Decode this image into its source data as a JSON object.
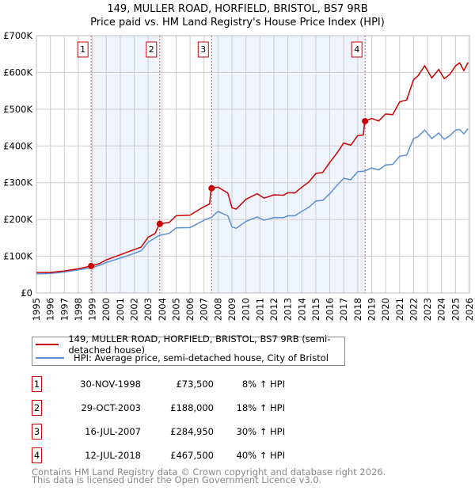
{
  "chart_data": {
    "type": "line",
    "title": "149, MULLER ROAD, HORFIELD, BRISTOL, BS7 9RB",
    "subtitle": "Price paid vs. HM Land Registry's House Price Index (HPI)",
    "xlim": [
      1995,
      2026
    ],
    "ylim": [
      0,
      700000
    ],
    "y_ticks": [
      0,
      100000,
      200000,
      300000,
      400000,
      500000,
      600000,
      700000
    ],
    "y_tick_labels": [
      "£0",
      "£100K",
      "£200K",
      "£300K",
      "£400K",
      "£500K",
      "£600K",
      "£700K"
    ],
    "x_ticks": [
      1995,
      1996,
      1997,
      1998,
      1999,
      2000,
      2001,
      2002,
      2003,
      2004,
      2005,
      2006,
      2007,
      2008,
      2009,
      2010,
      2011,
      2012,
      2013,
      2014,
      2015,
      2016,
      2017,
      2018,
      2019,
      2020,
      2021,
      2022,
      2023,
      2024,
      2025,
      2026
    ],
    "grid": true,
    "series": [
      {
        "name": "149, MULLER ROAD, HORFIELD, BRISTOL, BS7 9RB (semi-detached house)",
        "color": "#cc0000",
        "x": [
          1995,
          1996,
          1997,
          1998,
          1998.9,
          1999.5,
          2000,
          2001,
          2002,
          2002.5,
          2003,
          2003.5,
          2003.8,
          2004.5,
          2005,
          2006,
          2007,
          2007.4,
          2007.5,
          2008,
          2008.7,
          2009,
          2009.3,
          2010,
          2010.8,
          2011.3,
          2012,
          2012.7,
          2013,
          2013.5,
          2014,
          2014.5,
          2015,
          2015.5,
          2016,
          2016.5,
          2017,
          2017.5,
          2018,
          2018.4,
          2018.5,
          2019,
          2019.5,
          2020,
          2020.5,
          2021,
          2021.5,
          2022,
          2022.3,
          2022.8,
          2023.3,
          2023.8,
          2024.2,
          2024.6,
          2025,
          2025.3,
          2025.6,
          2025.9
        ],
        "y": [
          56,
          56,
          60,
          66,
          73.5,
          80,
          90,
          104,
          118,
          125,
          152,
          162,
          188,
          192,
          210,
          212,
          235,
          242,
          285,
          288,
          272,
          232,
          228,
          255,
          270,
          258,
          267,
          266,
          273,
          272,
          288,
          302,
          325,
          328,
          355,
          380,
          408,
          402,
          428,
          430,
          467.5,
          475,
          468,
          487,
          485,
          520,
          525,
          580,
          590,
          618,
          585,
          608,
          583,
          595,
          618,
          626,
          605,
          627
        ]
      },
      {
        "name": "HPI: Average price, semi-detached house, City of Bristol",
        "color": "#5b8fd4",
        "x": [
          1995,
          1996,
          1997,
          1998,
          1998.9,
          1999.5,
          2000,
          2001,
          2002,
          2002.5,
          2003,
          2003.5,
          2003.8,
          2004.5,
          2005,
          2006,
          2007,
          2007.4,
          2007.5,
          2008,
          2008.7,
          2009,
          2009.3,
          2010,
          2010.8,
          2011.3,
          2012,
          2012.7,
          2013,
          2013.5,
          2014,
          2014.5,
          2015,
          2015.5,
          2016,
          2016.5,
          2017,
          2017.5,
          2018,
          2018.4,
          2018.5,
          2019,
          2019.5,
          2020,
          2020.5,
          2021,
          2021.5,
          2022,
          2022.3,
          2022.8,
          2023.3,
          2023.8,
          2024.2,
          2024.6,
          2025,
          2025.3,
          2025.6,
          2025.9
        ],
        "y": [
          52,
          53,
          57,
          63,
          68,
          75,
          83,
          95,
          108,
          115,
          138,
          150,
          157,
          162,
          177,
          178,
          198,
          204,
          205,
          222,
          210,
          180,
          176,
          195,
          207,
          198,
          205,
          205,
          210,
          210,
          222,
          233,
          250,
          252,
          270,
          292,
          312,
          308,
          330,
          331,
          332,
          340,
          335,
          348,
          350,
          372,
          375,
          420,
          425,
          443,
          420,
          435,
          418,
          428,
          443,
          445,
          433,
          447
        ]
      }
    ],
    "y_units": "thousands GBP",
    "sales": [
      {
        "n": "1",
        "x": 1998.92,
        "y": 73.5,
        "date": "30-NOV-1998",
        "price": "£73,500",
        "hpi": "8% ↑ HPI"
      },
      {
        "n": "2",
        "x": 2003.83,
        "y": 188,
        "date": "29-OCT-2003",
        "price": "£188,000",
        "hpi": "18% ↑ HPI"
      },
      {
        "n": "3",
        "x": 2007.54,
        "y": 284.95,
        "date": "16-JUL-2007",
        "price": "£284,950",
        "hpi": "30% ↑ HPI"
      },
      {
        "n": "4",
        "x": 2018.53,
        "y": 467.5,
        "date": "12-JUL-2018",
        "price": "£467,500",
        "hpi": "40% ↑ HPI"
      }
    ]
  },
  "legend": {
    "red_label": "149, MULLER ROAD, HORFIELD, BRISTOL, BS7 9RB (semi-detached house)",
    "blue_label": "HPI: Average price, semi-detached house, City of Bristol"
  },
  "footer": {
    "line1": "Contains HM Land Registry data © Crown copyright and database right 2026.",
    "line2": "This data is licensed under the Open Government Licence v3.0."
  }
}
